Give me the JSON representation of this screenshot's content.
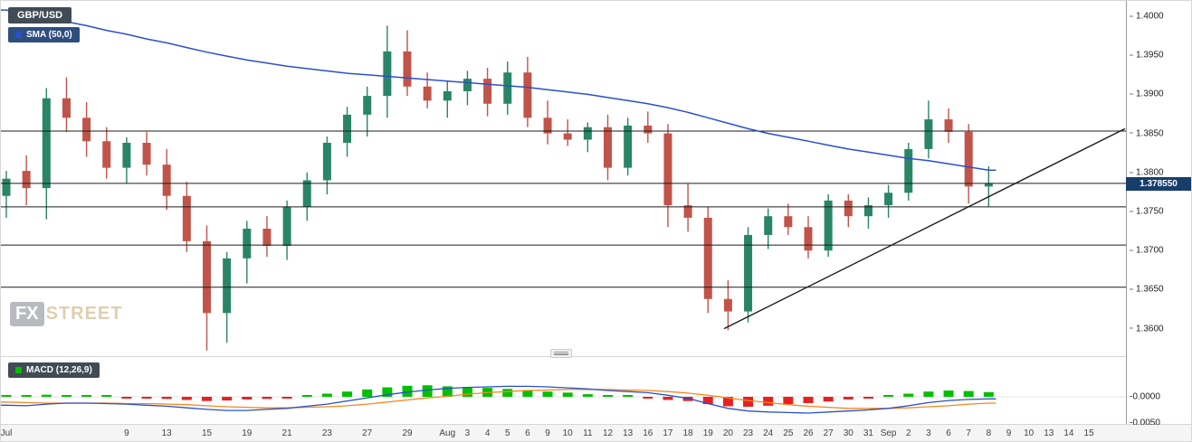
{
  "header": {
    "symbol": "GBP/USD",
    "sma_label": "SMA (50,0)",
    "macd_label": "MACD (12,26,9)"
  },
  "watermark": {
    "fx": "FX",
    "street": "STREET"
  },
  "current_price": "1.378550",
  "current_price_value": 1.37855,
  "price_axis": {
    "ticks": [
      "1.4000",
      "1.3950",
      "1.3900",
      "1.3850",
      "1.3800",
      "1.3750",
      "1.3700",
      "1.3650",
      "1.3600"
    ]
  },
  "macd_axis": {
    "ticks": [
      {
        "label": "-0.0000",
        "value": 0
      },
      {
        "label": "-0.0050",
        "value": -0.005
      }
    ]
  },
  "x_axis": {
    "labels": [
      {
        "text": "Jul",
        "slot": 0
      },
      {
        "text": "9",
        "slot": 6
      },
      {
        "text": "13",
        "slot": 8
      },
      {
        "text": "15",
        "slot": 10
      },
      {
        "text": "19",
        "slot": 12
      },
      {
        "text": "21",
        "slot": 14
      },
      {
        "text": "23",
        "slot": 16
      },
      {
        "text": "27",
        "slot": 18
      },
      {
        "text": "29",
        "slot": 20
      },
      {
        "text": "Aug",
        "slot": 22
      },
      {
        "text": "3",
        "slot": 23
      },
      {
        "text": "4",
        "slot": 24
      },
      {
        "text": "5",
        "slot": 25
      },
      {
        "text": "6",
        "slot": 26
      },
      {
        "text": "9",
        "slot": 27
      },
      {
        "text": "10",
        "slot": 28
      },
      {
        "text": "11",
        "slot": 29
      },
      {
        "text": "12",
        "slot": 30
      },
      {
        "text": "13",
        "slot": 31
      },
      {
        "text": "16",
        "slot": 32
      },
      {
        "text": "17",
        "slot": 33
      },
      {
        "text": "18",
        "slot": 34
      },
      {
        "text": "19",
        "slot": 35
      },
      {
        "text": "20",
        "slot": 36
      },
      {
        "text": "23",
        "slot": 37
      },
      {
        "text": "24",
        "slot": 38
      },
      {
        "text": "25",
        "slot": 39
      },
      {
        "text": "26",
        "slot": 40
      },
      {
        "text": "27",
        "slot": 41
      },
      {
        "text": "30",
        "slot": 42
      },
      {
        "text": "31",
        "slot": 43
      },
      {
        "text": "Sep",
        "slot": 44
      },
      {
        "text": "2",
        "slot": 45
      },
      {
        "text": "3",
        "slot": 46
      },
      {
        "text": "6",
        "slot": 47
      },
      {
        "text": "7",
        "slot": 48
      },
      {
        "text": "8",
        "slot": 49
      },
      {
        "text": "9",
        "slot": 50
      },
      {
        "text": "10",
        "slot": 51
      },
      {
        "text": "13",
        "slot": 52
      },
      {
        "text": "14",
        "slot": 53
      },
      {
        "text": "15",
        "slot": 54
      }
    ]
  },
  "colors": {
    "candle_up": "#2a8568",
    "candle_down": "#c1544a",
    "sma": "#2b50c8",
    "macd_line": "#2b50c8",
    "signal_line": "#f5871f",
    "hist_up": "#00c000",
    "hist_down": "#e82020",
    "level_line": "#1b1b1b",
    "badge_bg": "#173e6b"
  },
  "chart_data": {
    "type": "candlestick",
    "pair": "GBP/USD",
    "timeframe": "daily",
    "title": "GBP/USD with SMA(50) and MACD(12,26,9)",
    "price_axis_range": [
      1.3565,
      1.401
    ],
    "candles": [
      [
        "Jul 1",
        1.377,
        1.3802,
        1.3742,
        1.3792
      ],
      [
        "Jul 2",
        1.3802,
        1.3822,
        1.3758,
        1.378
      ],
      [
        "Jul 5",
        1.378,
        1.3908,
        1.374,
        1.3895
      ],
      [
        "Jul 6",
        1.3895,
        1.3922,
        1.3852,
        1.387
      ],
      [
        "Jul 7",
        1.387,
        1.389,
        1.382,
        1.384
      ],
      [
        "Jul 8",
        1.384,
        1.3858,
        1.3792,
        1.3806
      ],
      [
        "Jul 9",
        1.3806,
        1.3845,
        1.3786,
        1.3838
      ],
      [
        "Jul 12",
        1.3838,
        1.3852,
        1.3796,
        1.381
      ],
      [
        "Jul 13",
        1.381,
        1.383,
        1.3752,
        1.377
      ],
      [
        "Jul 14",
        1.377,
        1.3788,
        1.3698,
        1.3712
      ],
      [
        "Jul 15",
        1.3712,
        1.3732,
        1.3572,
        1.362
      ],
      [
        "Jul 16",
        1.362,
        1.3698,
        1.3582,
        1.369
      ],
      [
        "Jul 19",
        1.369,
        1.3738,
        1.3658,
        1.3728
      ],
      [
        "Jul 20",
        1.3728,
        1.3744,
        1.3692,
        1.3706
      ],
      [
        "Jul 21",
        1.3706,
        1.3764,
        1.3688,
        1.3756
      ],
      [
        "Jul 22",
        1.3756,
        1.38,
        1.3738,
        1.379
      ],
      [
        "Jul 23",
        1.379,
        1.3846,
        1.3772,
        1.3838
      ],
      [
        "Jul 26",
        1.3838,
        1.3884,
        1.382,
        1.3874
      ],
      [
        "Jul 27",
        1.3874,
        1.391,
        1.3846,
        1.3898
      ],
      [
        "Jul 28",
        1.3898,
        1.3988,
        1.387,
        1.3955
      ],
      [
        "Jul 29",
        1.3955,
        1.3982,
        1.3898,
        1.391
      ],
      [
        "Jul 30",
        1.391,
        1.3928,
        1.3882,
        1.3892
      ],
      [
        "Aug 2",
        1.3892,
        1.3918,
        1.387,
        1.3904
      ],
      [
        "Aug 3",
        1.3904,
        1.393,
        1.3886,
        1.392
      ],
      [
        "Aug 4",
        1.392,
        1.3934,
        1.3872,
        1.3888
      ],
      [
        "Aug 5",
        1.3888,
        1.3942,
        1.3874,
        1.3928
      ],
      [
        "Aug 6",
        1.3928,
        1.3948,
        1.3858,
        1.387
      ],
      [
        "Aug 9",
        1.387,
        1.3892,
        1.3836,
        1.385
      ],
      [
        "Aug 10",
        1.385,
        1.3868,
        1.3834,
        1.3842
      ],
      [
        "Aug 11",
        1.3842,
        1.3864,
        1.3826,
        1.3858
      ],
      [
        "Aug 12",
        1.3858,
        1.3874,
        1.379,
        1.3806
      ],
      [
        "Aug 13",
        1.3806,
        1.387,
        1.3796,
        1.386
      ],
      [
        "Aug 16",
        1.386,
        1.3878,
        1.3838,
        1.385
      ],
      [
        "Aug 17",
        1.385,
        1.3862,
        1.373,
        1.3758
      ],
      [
        "Aug 18",
        1.3758,
        1.3786,
        1.3724,
        1.3742
      ],
      [
        "Aug 19",
        1.3742,
        1.3756,
        1.362,
        1.3638
      ],
      [
        "Aug 20",
        1.3638,
        1.3662,
        1.3598,
        1.3622
      ],
      [
        "Aug 23",
        1.3622,
        1.373,
        1.3608,
        1.372
      ],
      [
        "Aug 24",
        1.372,
        1.3754,
        1.3702,
        1.3744
      ],
      [
        "Aug 25",
        1.3744,
        1.376,
        1.372,
        1.373
      ],
      [
        "Aug 26",
        1.373,
        1.3744,
        1.369,
        1.37
      ],
      [
        "Aug 27",
        1.37,
        1.3772,
        1.3692,
        1.3764
      ],
      [
        "Aug 30",
        1.3764,
        1.3772,
        1.373,
        1.3744
      ],
      [
        "Aug 31",
        1.3744,
        1.3768,
        1.3728,
        1.3758
      ],
      [
        "Sep 1",
        1.3758,
        1.3784,
        1.3742,
        1.3774
      ],
      [
        "Sep 2",
        1.3774,
        1.3838,
        1.3764,
        1.383
      ],
      [
        "Sep 3",
        1.383,
        1.3892,
        1.3818,
        1.3868
      ],
      [
        "Sep 6",
        1.3868,
        1.3882,
        1.3838,
        1.3852
      ],
      [
        "Sep 7",
        1.3852,
        1.3862,
        1.376,
        1.3782
      ],
      [
        "Sep 8",
        1.3782,
        1.3808,
        1.3756,
        1.3786
      ]
    ],
    "sma50": [
      1.4008,
      1.4003,
      1.3998,
      1.3993,
      1.3988,
      1.3982,
      1.3977,
      1.3971,
      1.3966,
      1.396,
      1.3954,
      1.3949,
      1.3944,
      1.394,
      1.3936,
      1.3933,
      1.393,
      1.3927,
      1.3925,
      1.3923,
      1.3921,
      1.3919,
      1.3917,
      1.3915,
      1.3913,
      1.3911,
      1.3909,
      1.3906,
      1.3903,
      1.39,
      1.3896,
      1.3892,
      1.3888,
      1.3883,
      1.3877,
      1.387,
      1.3863,
      1.3856,
      1.385,
      1.3845,
      1.384,
      1.3835,
      1.383,
      1.3826,
      1.3822,
      1.3818,
      1.3815,
      1.3811,
      1.3807,
      1.3803
    ],
    "levels": [
      1.3853,
      1.3786,
      1.3756,
      1.3707,
      1.3653
    ],
    "trendline": {
      "start": {
        "slot": 35.8,
        "price": 1.36
      },
      "end": {
        "slot": 55.8,
        "price": 1.3856
      }
    },
    "macd": {
      "range": [
        -0.005,
        0.0025
      ],
      "histogram": [
        0.0003,
        0.0002,
        0.0004,
        0.0003,
        0.0002,
        0.0001,
        -0.0001,
        -0.0003,
        -0.0004,
        -0.0006,
        -0.0008,
        -0.0007,
        -0.0005,
        -0.0004,
        -0.0002,
        0.0002,
        0.0006,
        0.001,
        0.0014,
        0.0018,
        0.0021,
        0.0022,
        0.002,
        0.0019,
        0.0017,
        0.0015,
        0.0013,
        0.001,
        0.0008,
        0.0005,
        0.0002,
        0.0001,
        -0.0002,
        -0.0006,
        -0.0008,
        -0.0014,
        -0.0018,
        -0.0019,
        -0.0017,
        -0.0014,
        -0.0012,
        -0.0009,
        -0.0005,
        -0.0002,
        0.0002,
        0.0006,
        0.001,
        0.0012,
        0.0011,
        0.0009
      ],
      "macd_line": [
        -0.0016,
        -0.0017,
        -0.0014,
        -0.0012,
        -0.0012,
        -0.0013,
        -0.0014,
        -0.0016,
        -0.0018,
        -0.0021,
        -0.0024,
        -0.0026,
        -0.0026,
        -0.0024,
        -0.0022,
        -0.0018,
        -0.0014,
        -0.0008,
        -0.0002,
        0.0004,
        0.0009,
        0.0013,
        0.0016,
        0.0018,
        0.0019,
        0.002,
        0.002,
        0.0019,
        0.0017,
        0.0015,
        0.0012,
        0.001,
        0.0008,
        0.0003,
        -0.0003,
        -0.0013,
        -0.0022,
        -0.0027,
        -0.0029,
        -0.003,
        -0.0031,
        -0.0029,
        -0.0027,
        -0.0025,
        -0.0022,
        -0.0017,
        -0.0011,
        -0.0007,
        -0.0005,
        -0.0004
      ],
      "signal_line": [
        -0.001,
        -0.0011,
        -0.0012,
        -0.0012,
        -0.0012,
        -0.0012,
        -0.0013,
        -0.0013,
        -0.0014,
        -0.0015,
        -0.0017,
        -0.0019,
        -0.002,
        -0.0021,
        -0.0021,
        -0.002,
        -0.0019,
        -0.0017,
        -0.0014,
        -0.001,
        -0.0006,
        -0.0002,
        0.0001,
        0.0005,
        0.0008,
        0.001,
        0.0012,
        0.0013,
        0.0014,
        0.0014,
        0.0014,
        0.0013,
        0.0012,
        0.001,
        0.0007,
        0.0003,
        -0.0002,
        -0.0007,
        -0.0011,
        -0.0015,
        -0.0018,
        -0.002,
        -0.0022,
        -0.0022,
        -0.0022,
        -0.0021,
        -0.0019,
        -0.0017,
        -0.0014,
        -0.0012
      ]
    }
  }
}
